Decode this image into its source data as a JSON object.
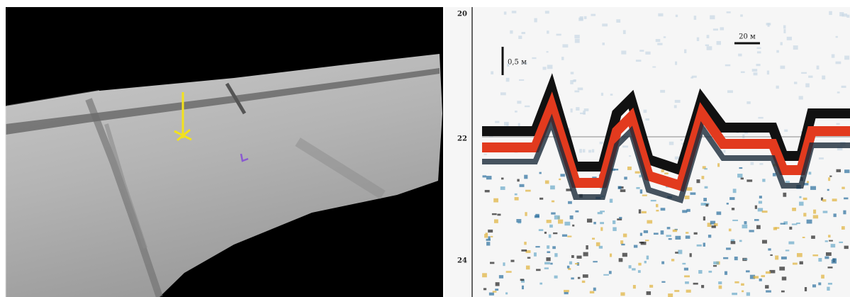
{
  "profile": {
    "depth_labels": [
      "20",
      "22",
      "24"
    ],
    "vertical_scale": "0,5 м",
    "horizontal_scale": "20 м"
  }
}
